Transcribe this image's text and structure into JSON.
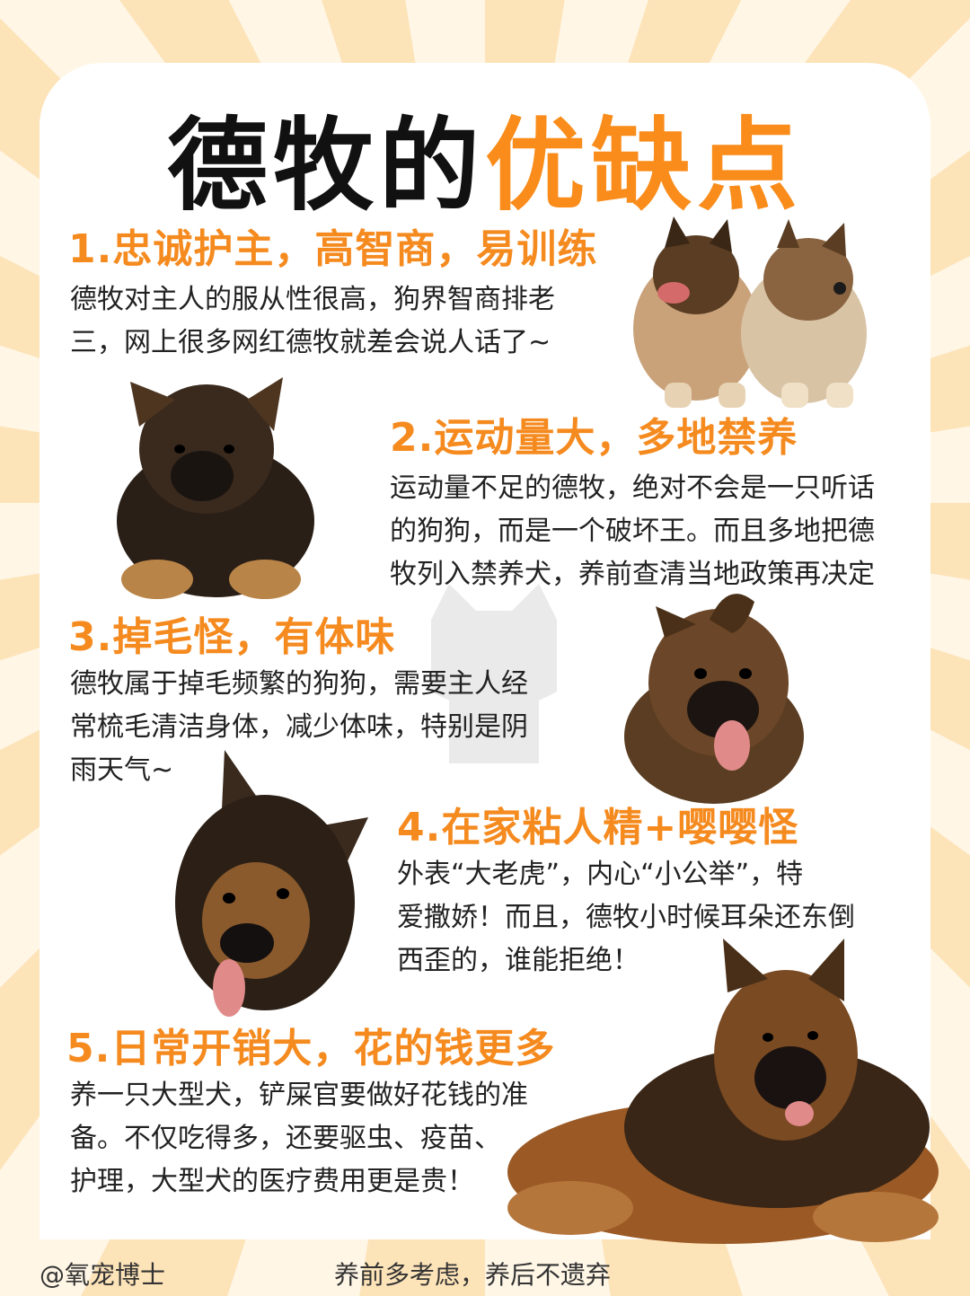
{
  "title": {
    "part1": "德牧的",
    "part2": "优缺点"
  },
  "sections": [
    {
      "heading": "1.忠诚护主，高智商，易训练",
      "lines": [
        "德牧对主人的服从性很高，狗界智商排老",
        "三，网上很多网红德牧就差会说人话了~"
      ]
    },
    {
      "heading": "2.运动量大，多地禁养",
      "lines": [
        "运动量不足的德牧，绝对不会是一只听话",
        "的狗狗，而是一个破坏王。而且多地把德",
        "牧列入禁养犬，养前查清当地政策再决定"
      ]
    },
    {
      "heading": "3.掉毛怪，有体味",
      "lines": [
        "德牧属于掉毛频繁的狗狗，需要主人经",
        "常梳毛清洁身体，减少体味，特别是阴",
        "雨天气~"
      ]
    },
    {
      "heading": "4.在家粘人精+嘤嘤怪",
      "lines": [
        "外表“大老虎”，内心“小公举”，特",
        "爱撒娇！而且，德牧小时候耳朵还东倒",
        "西歪的，谁能拒绝！"
      ]
    },
    {
      "heading": "5.日常开销大，花的钱更多",
      "lines": [
        "养一只大型犬，铲屎官要做好花钱的准",
        "备。不仅吃得多，还要驱虫、疫苗、",
        "护理，大型犬的医疗费用更是贵！"
      ]
    }
  ],
  "footer": {
    "account": "@氧宠博士",
    "slogan": "养前多考虑，养后不遗弃"
  },
  "colors": {
    "accent": "#f98c1a",
    "background": "#fde3b8",
    "text": "#222222"
  }
}
